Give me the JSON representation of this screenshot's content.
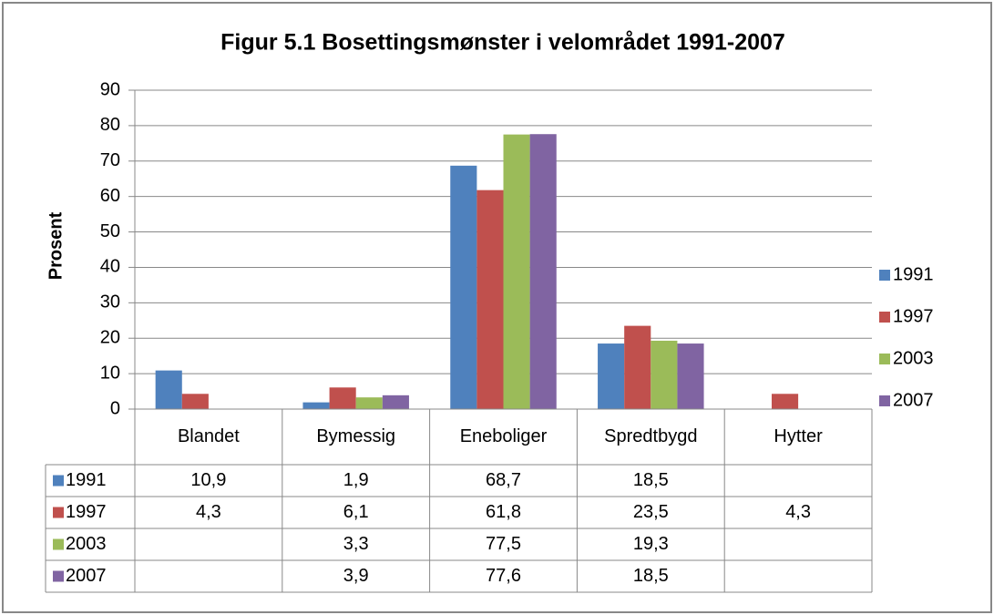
{
  "chart_data": {
    "type": "bar",
    "title": "Figur 5.1 Bosettingsmønster i velområdet 1991-2007",
    "y_label": "Prosent",
    "categories": [
      "Blandet",
      "Bymessig",
      "Eneboliger",
      "Spredtbygd",
      "Hytter"
    ],
    "series": [
      {
        "name": "1991",
        "color": "#4f81bd",
        "values": [
          10.9,
          1.9,
          68.7,
          18.5,
          null
        ],
        "value_labels": [
          "10,9",
          "1,9",
          "68,7",
          "18,5",
          null
        ]
      },
      {
        "name": "1997",
        "color": "#c0504d",
        "values": [
          4.3,
          6.1,
          61.8,
          23.5,
          4.3
        ],
        "value_labels": [
          "4,3",
          "6,1",
          "61,8",
          "23,5",
          "4,3"
        ]
      },
      {
        "name": "2003",
        "color": "#9bbb59",
        "values": [
          null,
          3.3,
          77.5,
          19.3,
          null
        ],
        "value_labels": [
          null,
          "3,3",
          "77,5",
          "19,3",
          null
        ]
      },
      {
        "name": "2007",
        "color": "#8064a2",
        "values": [
          null,
          3.9,
          77.6,
          18.5,
          null
        ],
        "value_labels": [
          null,
          "3,9",
          "77,6",
          "18,5",
          null
        ]
      }
    ],
    "ylim": [
      0,
      90
    ],
    "yticks": [
      0,
      10,
      20,
      30,
      40,
      50,
      60,
      70,
      80,
      90
    ],
    "grid": true,
    "legend": "right"
  }
}
